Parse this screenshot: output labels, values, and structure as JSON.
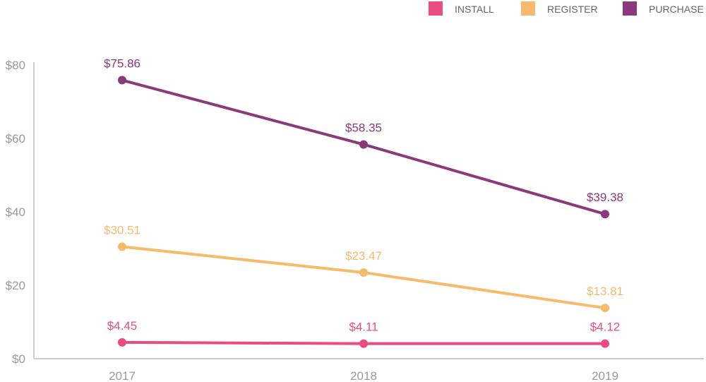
{
  "chart_data": {
    "type": "line",
    "categories": [
      "2017",
      "2018",
      "2019"
    ],
    "series": [
      {
        "name": "INSTALL",
        "color": "#ea4c7f",
        "values": [
          4.45,
          4.11,
          4.12
        ],
        "labels": [
          "$4.45",
          "$4.11",
          "$4.12"
        ]
      },
      {
        "name": "REGISTER",
        "color": "#f5bb6a",
        "values": [
          30.51,
          23.47,
          13.81
        ],
        "labels": [
          "$30.51",
          "$23.47",
          "$13.81"
        ]
      },
      {
        "name": "PURCHASE",
        "color": "#8a3a7b",
        "values": [
          75.86,
          58.35,
          39.38
        ],
        "labels": [
          "$75.86",
          "$58.35",
          "$39.38"
        ]
      }
    ],
    "yticks": [
      "$0",
      "$20",
      "$40",
      "$60",
      "$80"
    ],
    "ytick_values": [
      0,
      20,
      40,
      60,
      80
    ],
    "ylim": [
      0,
      80
    ],
    "legend": "top-right",
    "grid": false,
    "title": "",
    "xlabel": "",
    "ylabel": ""
  }
}
